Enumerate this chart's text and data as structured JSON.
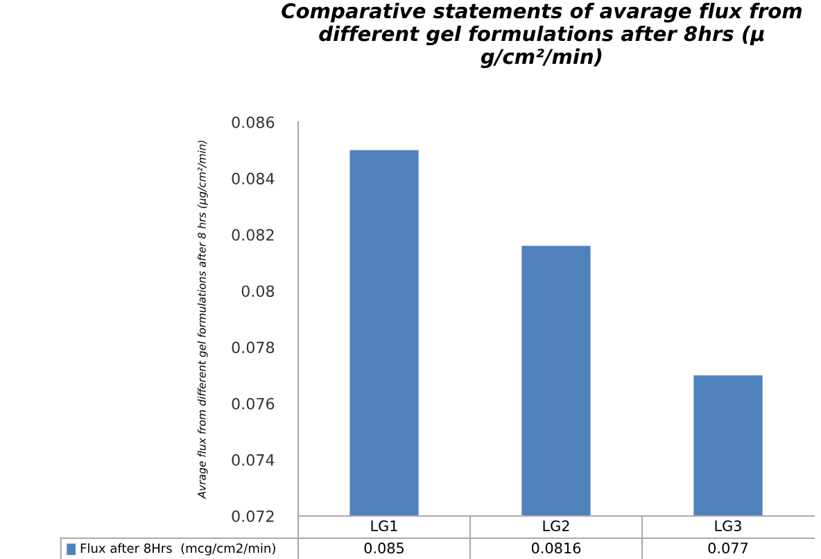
{
  "chart_data": {
    "type": "bar",
    "title": "Comparative statements of avarage flux from different gel formulations after 8hrs (μ g/cm²/min)",
    "ylabel": "Avrage flux from different gel formulations after 8 hrs (μg/cm²/min)",
    "categories": [
      "LG1",
      "LG2",
      "LG3"
    ],
    "series": [
      {
        "name": "Flux after 8Hrs  (mcg/cm2/min)",
        "color": "#4f81bd",
        "values": [
          0.085,
          0.0816,
          0.077
        ]
      }
    ],
    "ylim": [
      0.072,
      0.086
    ],
    "yticks": [
      0.072,
      0.074,
      0.076,
      0.078,
      0.08,
      0.082,
      0.084,
      0.086
    ],
    "data_labels": true,
    "grid": false
  }
}
